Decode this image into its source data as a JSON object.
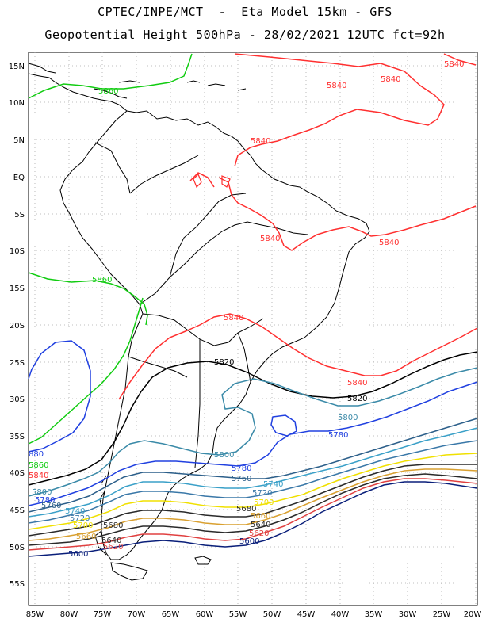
{
  "title": {
    "line1": "CPTEC/INPE/MCT  -  Eta Model 15km - GFS",
    "line2": "Geopotential Height 500hPa - 28/02/2021 12UTC fct=92h"
  },
  "colors": {
    "c5600": "#0a1f7a",
    "c5620": "#e04040",
    "c5640": "#2a2a2a",
    "c5660": "#d9a030",
    "c5680": "#2a2a2a",
    "c5700": "#f0e000",
    "c5720": "#3a78a8",
    "c5740": "#3aa0c8",
    "c5760": "#2c5f8a",
    "c5780": "#2040e0",
    "c5800": "#3a8aa8",
    "c5820": "#000000",
    "c5840": "#ff3030",
    "c5860": "#11cc11",
    "coast": "#000000",
    "grid": "#aaaaaa"
  },
  "axes": {
    "lat_labels": [
      "15N",
      "10N",
      "5N",
      "EQ",
      "5S",
      "10S",
      "15S",
      "20S",
      "25S",
      "30S",
      "35S",
      "40S",
      "45S",
      "50S",
      "55S"
    ],
    "lon_labels": [
      "85W",
      "80W",
      "75W",
      "70W",
      "65W",
      "60W",
      "55W",
      "50W",
      "45W",
      "40W",
      "35W",
      "30W",
      "25W",
      "20W"
    ]
  },
  "contour_labels": [
    {
      "text": "5840",
      "color": "#ff3030"
    },
    {
      "text": "5840",
      "color": "#ff3030"
    },
    {
      "text": "5840",
      "color": "#ff3030"
    },
    {
      "text": "5840",
      "color": "#ff3030"
    },
    {
      "text": "5840",
      "color": "#ff3030"
    },
    {
      "text": "5840",
      "color": "#ff3030"
    },
    {
      "text": "5840",
      "color": "#ff3030"
    },
    {
      "text": "5840",
      "color": "#ff3030"
    },
    {
      "text": "5860",
      "color": "#11cc11"
    },
    {
      "text": "5860",
      "color": "#11cc11"
    },
    {
      "text": "5820",
      "color": "#000000"
    },
    {
      "text": "5820",
      "color": "#000000"
    },
    {
      "text": "5800",
      "color": "#3a8aa8"
    },
    {
      "text": "5800",
      "color": "#3a8aa8"
    },
    {
      "text": "5780",
      "color": "#2040e0"
    },
    {
      "text": "5780",
      "color": "#2040e0"
    },
    {
      "text": "5760",
      "color": "#2c5f8a"
    },
    {
      "text": "5740",
      "color": "#3aa0c8"
    },
    {
      "text": "5720",
      "color": "#3a78a8"
    },
    {
      "text": "5700",
      "color": "#f0e000"
    },
    {
      "text": "5680",
      "color": "#2a2a2a"
    },
    {
      "text": "5660",
      "color": "#d9a030"
    },
    {
      "text": "5640",
      "color": "#2a2a2a"
    },
    {
      "text": "5620",
      "color": "#e04040"
    },
    {
      "text": "5600",
      "color": "#0a1f7a"
    },
    {
      "text": "880",
      "color": "#2040e0"
    },
    {
      "text": "5860",
      "color": "#11cc11"
    },
    {
      "text": "5840",
      "color": "#ff3030"
    },
    {
      "text": "5800",
      "color": "#3a8aa8"
    },
    {
      "text": "5780",
      "color": "#2040e0"
    },
    {
      "text": "5760",
      "color": "#2c5f8a"
    },
    {
      "text": "5740",
      "color": "#3aa0c8"
    },
    {
      "text": "5720",
      "color": "#3a78a8"
    },
    {
      "text": "5700",
      "color": "#f0e000"
    },
    {
      "text": "5680",
      "color": "#2a2a2a"
    },
    {
      "text": "5660",
      "color": "#d9a030"
    },
    {
      "text": "5640",
      "color": "#2a2a2a"
    },
    {
      "text": "5620",
      "color": "#e04040"
    },
    {
      "text": "5600",
      "color": "#0a1f7a"
    }
  ]
}
